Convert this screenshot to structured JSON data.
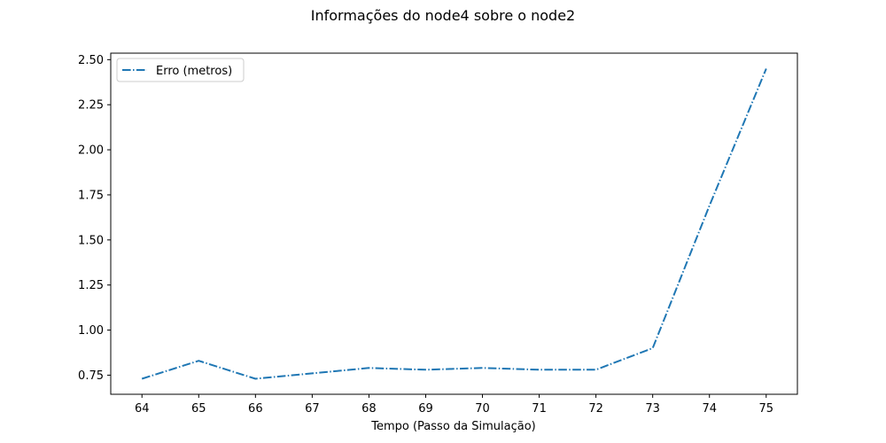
{
  "chart_data": {
    "type": "line",
    "title": "Informações do node4 sobre o node2",
    "xlabel": "Tempo (Passo da Simulação)",
    "ylabel": "",
    "x": [
      64,
      65,
      66,
      67,
      68,
      69,
      70,
      71,
      72,
      73,
      74,
      75
    ],
    "xlim": [
      63.45,
      75.55
    ],
    "ylim": [
      0.644,
      2.536
    ],
    "xticks": [
      64,
      65,
      66,
      67,
      68,
      69,
      70,
      71,
      72,
      73,
      74,
      75
    ],
    "xtick_labels": [
      "64",
      "65",
      "66",
      "67",
      "68",
      "69",
      "70",
      "71",
      "72",
      "73",
      "74",
      "75"
    ],
    "yticks": [
      0.75,
      1.0,
      1.25,
      1.5,
      1.75,
      2.0,
      2.25,
      2.5
    ],
    "ytick_labels": [
      "0.75",
      "1.00",
      "1.25",
      "1.50",
      "1.75",
      "2.00",
      "2.25",
      "2.50"
    ],
    "grid": false,
    "legend_position": "upper-left",
    "series": [
      {
        "name": "Erro (metros)",
        "color": "#1f77b4",
        "linestyle": "dash-dot",
        "values": [
          0.73,
          0.83,
          0.73,
          0.76,
          0.79,
          0.78,
          0.79,
          0.78,
          0.78,
          0.9,
          1.69,
          2.45
        ]
      }
    ]
  }
}
